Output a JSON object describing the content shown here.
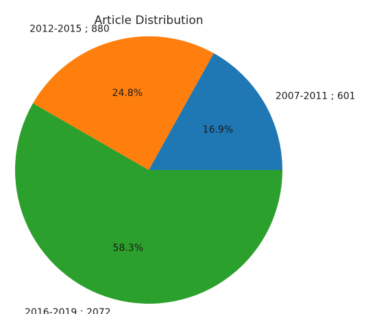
{
  "chart_data": {
    "type": "pie",
    "title": "Article Distribution",
    "slices": [
      {
        "label": "2007-2011 ; 601",
        "value": 601,
        "pct_label": "16.9%",
        "color": "#1f77b4"
      },
      {
        "label": "2012-2015 ; 880",
        "value": 880,
        "pct_label": "24.8%",
        "color": "#ff7f0e"
      },
      {
        "label": "2016-2019 ; 2072",
        "value": 2072,
        "pct_label": "58.3%",
        "color": "#2ca02c"
      }
    ],
    "start_angle_deg": 0,
    "direction": "counterclockwise"
  }
}
